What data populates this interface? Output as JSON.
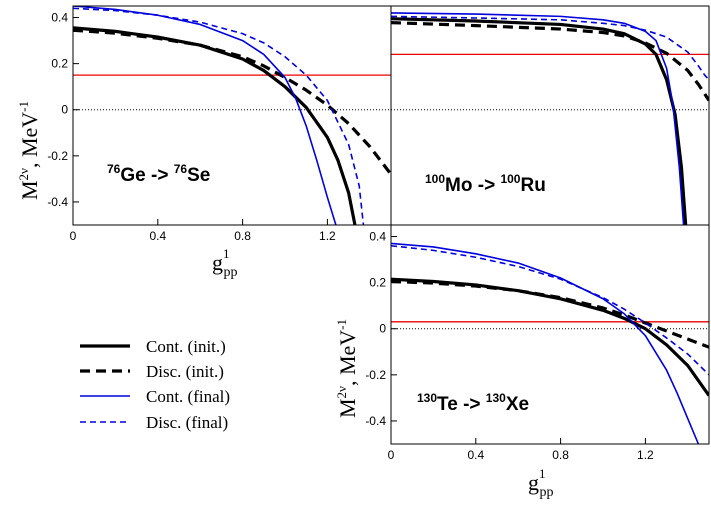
{
  "chart_data": [
    {
      "type": "line",
      "panel": "top-left",
      "title": "76Ge -> 76Se",
      "reaction": {
        "iso1": "76",
        "el1": "Ge",
        "arrow": " -> ",
        "iso2": "76",
        "el2": "Se"
      },
      "xlabel": {
        "base": "g",
        "sup": "1",
        "sub": "pp"
      },
      "ylabel": {
        "base": "M",
        "sup": "2ν",
        "mid": ", MeV",
        "sup2": "-1"
      },
      "xlim": [
        0,
        1.5
      ],
      "ylim": [
        -0.5,
        0.45
      ],
      "xticks": [
        0,
        0.4,
        0.8,
        1.2
      ],
      "yticks": [
        -0.4,
        -0.2,
        0,
        0.2,
        0.4
      ],
      "tick_labels_x": [
        "0",
        "0.4",
        "0.8",
        "1.2"
      ],
      "tick_labels_y": [
        "-0.4",
        "-0.2",
        "0",
        "0.2",
        "0.4"
      ],
      "hline": 0.15,
      "series": [
        {
          "name": "Cont. (init.)",
          "x": [
            0,
            0.2,
            0.4,
            0.6,
            0.8,
            0.9,
            1.0,
            1.1,
            1.2,
            1.25,
            1.3,
            1.33
          ],
          "y": [
            0.355,
            0.34,
            0.315,
            0.28,
            0.22,
            0.17,
            0.1,
            0.01,
            -0.12,
            -0.22,
            -0.36,
            -0.5
          ]
        },
        {
          "name": "Disc. (init.)",
          "x": [
            0,
            0.2,
            0.4,
            0.6,
            0.8,
            0.9,
            1.0,
            1.1,
            1.2,
            1.3,
            1.4,
            1.5
          ],
          "y": [
            0.345,
            0.332,
            0.31,
            0.28,
            0.23,
            0.19,
            0.14,
            0.085,
            0.02,
            -0.06,
            -0.16,
            -0.28
          ]
        },
        {
          "name": "Cont. (final)",
          "x": [
            0,
            0.2,
            0.4,
            0.6,
            0.8,
            0.9,
            1.0,
            1.05,
            1.1,
            1.15,
            1.2,
            1.24
          ],
          "y": [
            0.45,
            0.435,
            0.41,
            0.37,
            0.3,
            0.24,
            0.14,
            0.05,
            -0.07,
            -0.22,
            -0.38,
            -0.5
          ]
        },
        {
          "name": "Disc. (final)",
          "x": [
            0,
            0.2,
            0.4,
            0.6,
            0.8,
            0.9,
            1.0,
            1.1,
            1.2,
            1.3,
            1.35,
            1.37
          ],
          "y": [
            0.44,
            0.43,
            0.41,
            0.38,
            0.33,
            0.29,
            0.23,
            0.15,
            0.04,
            -0.15,
            -0.33,
            -0.5
          ]
        }
      ]
    },
    {
      "type": "line",
      "panel": "top-right",
      "title": "100Mo -> 100Ru",
      "reaction": {
        "iso1": "100",
        "el1": "Mo",
        "arrow": " -> ",
        "iso2": "100",
        "el2": "Ru"
      },
      "xlim": [
        0,
        1.5
      ],
      "ylim": [
        -0.5,
        0.45
      ],
      "hline": 0.24,
      "series": [
        {
          "name": "Cont. (init.)",
          "x": [
            0,
            0.4,
            0.8,
            1.0,
            1.1,
            1.2,
            1.25,
            1.3,
            1.34,
            1.37,
            1.39
          ],
          "y": [
            0.395,
            0.385,
            0.37,
            0.35,
            0.33,
            0.285,
            0.24,
            0.13,
            -0.02,
            -0.25,
            -0.5
          ]
        },
        {
          "name": "Disc. (init.)",
          "x": [
            0,
            0.4,
            0.8,
            1.0,
            1.1,
            1.2,
            1.3,
            1.4,
            1.45,
            1.5
          ],
          "y": [
            0.378,
            0.365,
            0.35,
            0.335,
            0.32,
            0.29,
            0.245,
            0.17,
            0.11,
            0.04
          ]
        },
        {
          "name": "Cont. (final)",
          "x": [
            0,
            0.4,
            0.8,
            1.0,
            1.1,
            1.2,
            1.25,
            1.3,
            1.33,
            1.36,
            1.38
          ],
          "y": [
            0.42,
            0.415,
            0.405,
            0.39,
            0.375,
            0.34,
            0.3,
            0.18,
            0.02,
            -0.25,
            -0.5
          ]
        },
        {
          "name": "Disc. (final)",
          "x": [
            0,
            0.4,
            0.8,
            1.0,
            1.1,
            1.2,
            1.3,
            1.4,
            1.45,
            1.48,
            1.5
          ],
          "y": [
            0.405,
            0.398,
            0.39,
            0.375,
            0.365,
            0.345,
            0.315,
            0.25,
            0.19,
            0.15,
            0.13
          ]
        }
      ]
    },
    {
      "type": "line",
      "panel": "bottom-right",
      "title": "130Te -> 130Xe",
      "reaction": {
        "iso1": "130",
        "el1": "Te",
        "arrow": " -> ",
        "iso2": "130",
        "el2": "Xe"
      },
      "xlabel": {
        "base": "g",
        "sup": "1",
        "sub": "pp"
      },
      "ylabel": {
        "base": "M",
        "sup": "2ν",
        "mid": ", MeV",
        "sup2": "-1"
      },
      "xlim": [
        0,
        1.5
      ],
      "ylim": [
        -0.5,
        0.45
      ],
      "xticks": [
        0,
        0.4,
        0.8,
        1.2
      ],
      "yticks": [
        -0.4,
        -0.2,
        0,
        0.2,
        0.4
      ],
      "tick_labels_x": [
        "0",
        "0.4",
        "0.8",
        "1.2"
      ],
      "tick_labels_y": [
        "-0.4",
        "-0.2",
        "0",
        "0.2",
        "0.4"
      ],
      "hline": 0.03,
      "series": [
        {
          "name": "Cont. (init.)",
          "x": [
            0,
            0.2,
            0.4,
            0.6,
            0.8,
            1.0,
            1.1,
            1.2,
            1.3,
            1.4,
            1.5
          ],
          "y": [
            0.215,
            0.205,
            0.19,
            0.165,
            0.13,
            0.08,
            0.045,
            0.0,
            -0.07,
            -0.16,
            -0.29
          ]
        },
        {
          "name": "Disc. (init.)",
          "x": [
            0,
            0.2,
            0.4,
            0.6,
            0.8,
            1.0,
            1.1,
            1.2,
            1.3,
            1.4,
            1.5
          ],
          "y": [
            0.205,
            0.198,
            0.185,
            0.165,
            0.135,
            0.09,
            0.06,
            0.025,
            -0.01,
            -0.045,
            -0.08
          ]
        },
        {
          "name": "Cont. (final)",
          "x": [
            0,
            0.2,
            0.4,
            0.6,
            0.8,
            1.0,
            1.1,
            1.2,
            1.3,
            1.35,
            1.4,
            1.45
          ],
          "y": [
            0.37,
            0.355,
            0.325,
            0.285,
            0.22,
            0.13,
            0.065,
            -0.03,
            -0.18,
            -0.28,
            -0.39,
            -0.5
          ]
        },
        {
          "name": "Disc. (final)",
          "x": [
            0,
            0.2,
            0.4,
            0.6,
            0.8,
            1.0,
            1.1,
            1.2,
            1.3,
            1.4,
            1.5
          ],
          "y": [
            0.36,
            0.34,
            0.31,
            0.27,
            0.215,
            0.135,
            0.085,
            0.025,
            -0.04,
            -0.11,
            -0.2
          ]
        }
      ]
    }
  ],
  "legend": [
    {
      "label": "Cont. (init.)",
      "color": "#000000",
      "dash": "solid",
      "weight": "thick"
    },
    {
      "label": "Disc. (init.)",
      "color": "#000000",
      "dash": "dashed",
      "weight": "thick"
    },
    {
      "label": "Cont. (final)",
      "color": "#0000dd",
      "dash": "solid",
      "weight": "thin"
    },
    {
      "label": "Disc. (final)",
      "color": "#0000dd",
      "dash": "dashed",
      "weight": "thin"
    }
  ],
  "colors": {
    "init": "#000000",
    "final": "#0000dd",
    "hline": "#ee0000",
    "zero": "#000000"
  }
}
